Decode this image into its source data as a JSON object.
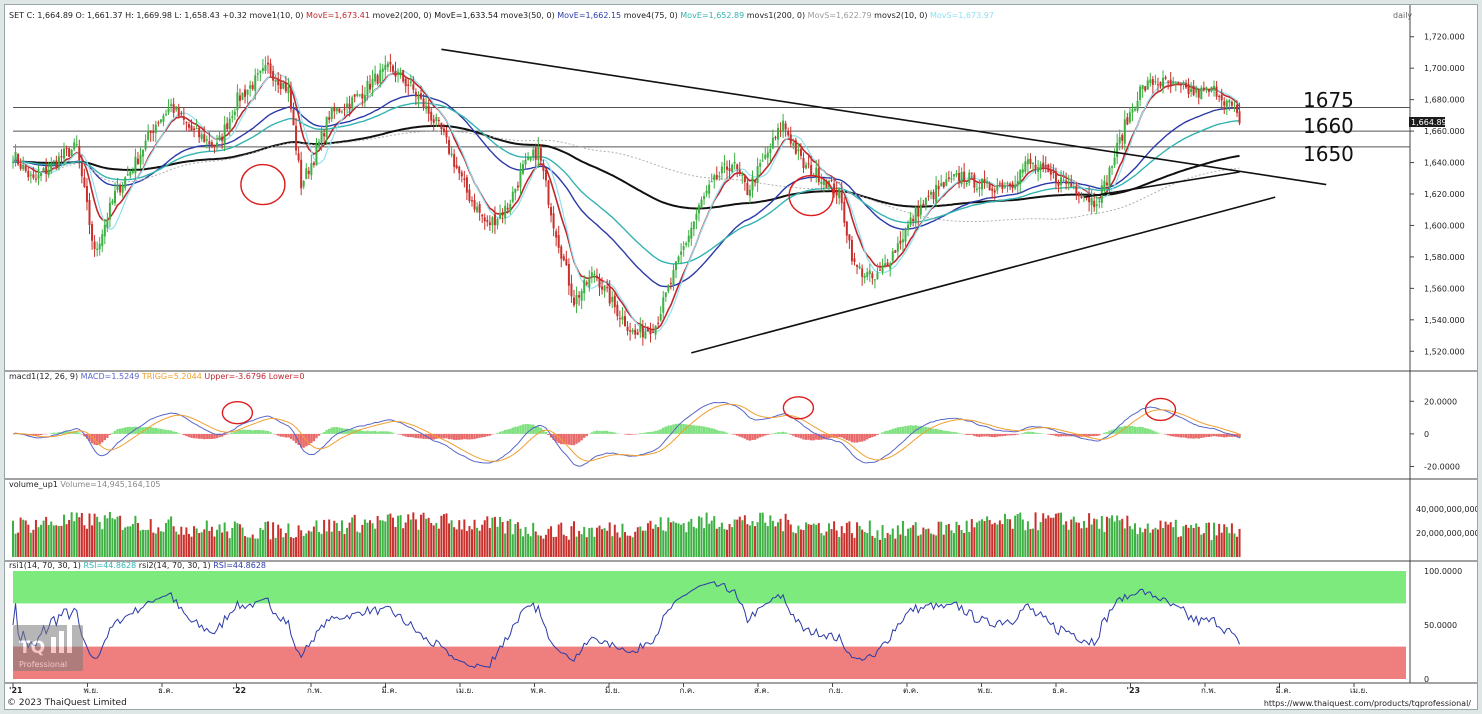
{
  "colors": {
    "bull": "#3cb043",
    "bear": "#c9302c",
    "move1": "#c0272d",
    "move2": "#111111",
    "move3": "#2b3aa8",
    "move4": "#33b3b0",
    "movs1": "#b0b0b0",
    "movs2": "#8fe0f0",
    "macd": "#5a67c9",
    "trigger": "#f0a030",
    "hist_pos": "#7ee07e",
    "hist_neg": "#e96a6a",
    "rsi_line": "#2b3aa8",
    "rsi_top": "#7dea7d",
    "rsi_bottom": "#ef7f7f",
    "grid": "#dddddd",
    "annot": "#dd1c1c"
  },
  "price_header": {
    "prefix": "SET C: 1,664.89  O: 1,661.37  H: 1,669.98  L: 1,658.43  +0.32",
    "items": [
      {
        "label": "move1(10, 0)",
        "value": "MovE=1,673.41",
        "color": "#c0272d"
      },
      {
        "label": "move2(200, 0)",
        "value": "MovE=1,633.54",
        "color": "#111111"
      },
      {
        "label": "move3(50, 0)",
        "value": "MovE=1,662.15",
        "color": "#2b3aa8"
      },
      {
        "label": "move4(75, 0)",
        "value": "MovE=1,652.89",
        "color": "#33b3b0"
      },
      {
        "label": "movs1(200, 0)",
        "value": "MovS=1,622.79",
        "color": "#9a9a9a"
      },
      {
        "label": "movs2(10, 0)",
        "value": "MovS=1,673.97",
        "color": "#8fe0f0"
      }
    ],
    "period": "daily"
  },
  "macd_header": {
    "label": "macd1(12, 26, 9)",
    "parts": [
      {
        "text": "MACD=1.5249",
        "color": "#5a67c9"
      },
      {
        "text": "TRIGG=5.2044",
        "color": "#f0a030"
      },
      {
        "text": "Upper=-3.6796",
        "color": "#c0272d"
      },
      {
        "text": "Lower=0",
        "color": "#c0272d"
      }
    ]
  },
  "volume_header": {
    "label": "volume_up1",
    "value": "Volume=14,945,164,105"
  },
  "rsi_header": {
    "label": "rsi1(14, 70, 30, 1)",
    "value1": "RSI=44.8628",
    "label2": "rsi2(14, 70, 30, 1)",
    "value2": "RSI=44.8628"
  },
  "level_labels": [
    "1675",
    "1660",
    "1650"
  ],
  "last_price_tag": "1,664.89",
  "watermark": {
    "logo": "TQ",
    "text": "Professional"
  },
  "copyright": "© 2023 ThaiQuest Limited",
  "url": "https://www.thaiquest.com/products/tqprofessional/",
  "chart_data": [
    {
      "type": "line",
      "title": "SET",
      "subtype": "candlestick",
      "ylim": [
        1510,
        1730
      ],
      "y_ticks": [
        "1,720.000",
        "1,700.000",
        "1,680.000",
        "1,660.000",
        "1,640.000",
        "1,620.000",
        "1,600.000",
        "1,580.000",
        "1,560.000",
        "1,540.000",
        "1,520.000"
      ],
      "x_ticks": [
        "'21",
        "พ.ย.",
        "ธ.ค.",
        "'22",
        "ก.พ.",
        "มี.ค.",
        "เม.ย.",
        "พ.ค.",
        "มิ.ย.",
        "ก.ค.",
        "ส.ค.",
        "ก.ย.",
        "ต.ค.",
        "พ.ย.",
        "ธ.ค.",
        "'23",
        "ก.พ.",
        "มี.ค.",
        "เม.ย."
      ],
      "close_anchors": [
        [
          0,
          1645
        ],
        [
          8,
          1628
        ],
        [
          20,
          1645
        ],
        [
          25,
          1650
        ],
        [
          32,
          1582
        ],
        [
          40,
          1620
        ],
        [
          48,
          1640
        ],
        [
          56,
          1665
        ],
        [
          62,
          1676
        ],
        [
          70,
          1660
        ],
        [
          80,
          1650
        ],
        [
          88,
          1680
        ],
        [
          94,
          1690
        ],
        [
          100,
          1700
        ],
        [
          108,
          1686
        ],
        [
          113,
          1626
        ],
        [
          118,
          1643
        ],
        [
          124,
          1670
        ],
        [
          134,
          1680
        ],
        [
          142,
          1693
        ],
        [
          148,
          1700
        ],
        [
          156,
          1688
        ],
        [
          168,
          1660
        ],
        [
          178,
          1621
        ],
        [
          186,
          1600
        ],
        [
          194,
          1612
        ],
        [
          200,
          1636
        ],
        [
          206,
          1648
        ],
        [
          212,
          1602
        ],
        [
          220,
          1552
        ],
        [
          228,
          1570
        ],
        [
          236,
          1548
        ],
        [
          244,
          1530
        ],
        [
          252,
          1537
        ],
        [
          262,
          1582
        ],
        [
          270,
          1615
        ],
        [
          276,
          1630
        ],
        [
          282,
          1640
        ],
        [
          288,
          1622
        ],
        [
          296,
          1646
        ],
        [
          302,
          1665
        ],
        [
          310,
          1638
        ],
        [
          318,
          1630
        ],
        [
          324,
          1620
        ],
        [
          330,
          1574
        ],
        [
          338,
          1565
        ],
        [
          346,
          1585
        ],
        [
          354,
          1608
        ],
        [
          362,
          1622
        ],
        [
          372,
          1632
        ],
        [
          382,
          1624
        ],
        [
          392,
          1628
        ],
        [
          398,
          1640
        ],
        [
          406,
          1632
        ],
        [
          416,
          1625
        ],
        [
          424,
          1615
        ],
        [
          428,
          1625
        ],
        [
          436,
          1663
        ],
        [
          442,
          1686
        ],
        [
          448,
          1692
        ],
        [
          456,
          1688
        ],
        [
          464,
          1684
        ],
        [
          472,
          1686
        ],
        [
          478,
          1675
        ],
        [
          481,
          1665
        ]
      ],
      "series": [
        {
          "name": "move1(10, 0)",
          "period": 10,
          "kind": "ema"
        },
        {
          "name": "move2(200, 0)",
          "period": 200,
          "kind": "ema"
        },
        {
          "name": "move3(50, 0)",
          "period": 50,
          "kind": "ema"
        },
        {
          "name": "move4(75, 0)",
          "period": 75,
          "kind": "ema"
        },
        {
          "name": "movs1(200, 0)",
          "period": 200,
          "kind": "sma"
        },
        {
          "name": "movs2(10, 0)",
          "period": 10,
          "kind": "sma"
        }
      ],
      "levels": [
        1675,
        1660,
        1650
      ],
      "trendlines": [
        {
          "from": {
            "bar": 168,
            "price": 1712
          },
          "to": {
            "bar": 515,
            "price": 1626
          }
        },
        {
          "from": {
            "bar": 266,
            "price": 1519
          },
          "to": {
            "bar": 495,
            "price": 1618
          }
        },
        {
          "from": {
            "bar": 420,
            "price": 1618
          },
          "to": {
            "bar": 481,
            "price": 1634
          }
        }
      ],
      "annotations": [
        {
          "bar": 98,
          "price": 1626
        },
        {
          "bar": 313,
          "price": 1619
        }
      ],
      "last": {
        "open": 1661.37,
        "high": 1669.98,
        "low": 1658.43,
        "close": 1664.89
      }
    },
    {
      "type": "bar",
      "title": "macd1(12, 26, 9)",
      "ylim": [
        -24,
        30
      ],
      "y_ticks": [
        "20.0000",
        "0",
        "-20.0000"
      ],
      "last": {
        "macd": 1.5249,
        "trigger": 5.2044
      },
      "annotations": [
        {
          "bar": 88,
          "value": 13
        },
        {
          "bar": 308,
          "value": 16
        },
        {
          "bar": 450,
          "value": 15
        }
      ]
    },
    {
      "type": "bar",
      "title": "volume_up1",
      "ylim": [
        0,
        55000000000
      ],
      "y_ticks": [
        "40,000,000,000",
        "20,000,000,000"
      ],
      "last": 14945164105
    },
    {
      "type": "line",
      "title": "rsi1(14, 70, 30, 1)",
      "ylim": [
        0,
        100
      ],
      "y_ticks": [
        "100.0000",
        "50.0000",
        "0"
      ],
      "bands": [
        {
          "from": 70,
          "to": 100
        },
        {
          "from": 0,
          "to": 30
        }
      ],
      "last": 44.8628
    }
  ]
}
